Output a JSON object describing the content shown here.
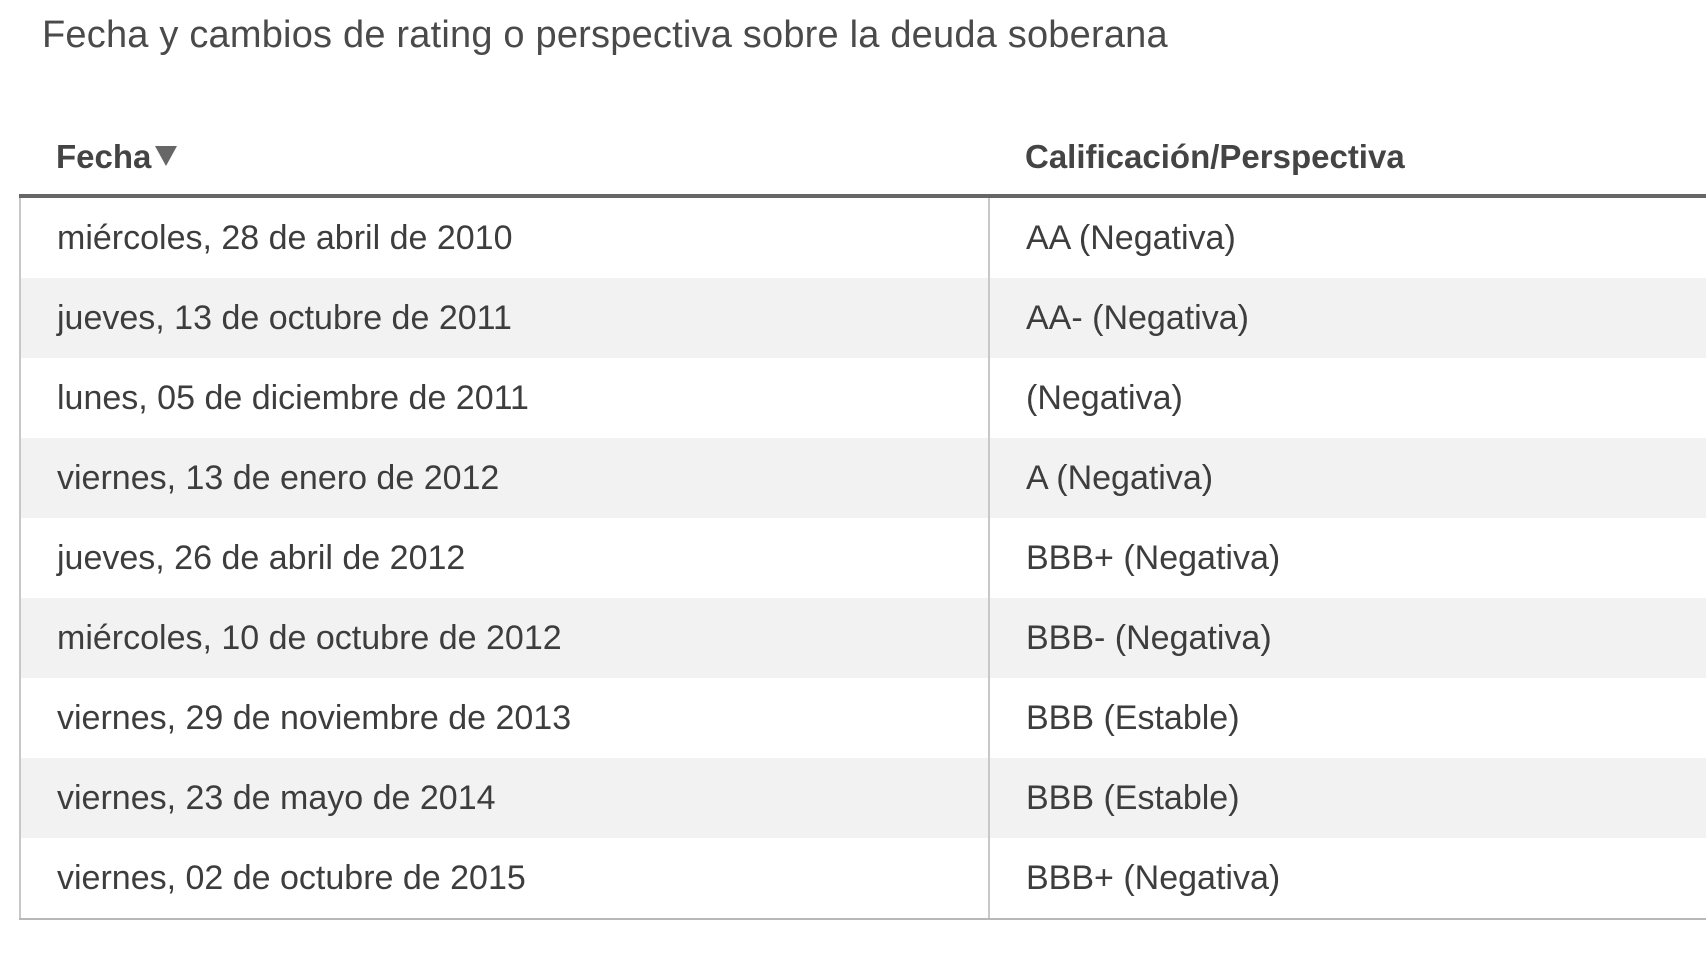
{
  "title": "Fecha y cambios de rating o perspectiva sobre la deuda soberana",
  "table": {
    "headers": {
      "date": "Fecha",
      "rating": "Calificación/Perspectiva"
    },
    "sort_icon": "sort-descending-triangle",
    "rows": [
      {
        "date": "miércoles, 28 de abril de 2010",
        "rating": "AA (Negativa)"
      },
      {
        "date": "jueves, 13 de octubre de 2011",
        "rating": "AA- (Negativa)"
      },
      {
        "date": "lunes, 05 de diciembre de 2011",
        "rating": "(Negativa)"
      },
      {
        "date": "viernes, 13 de enero de 2012",
        "rating": "A (Negativa)"
      },
      {
        "date": "jueves, 26 de abril de 2012",
        "rating": "BBB+ (Negativa)"
      },
      {
        "date": "miércoles, 10 de octubre de 2012",
        "rating": "BBB- (Negativa)"
      },
      {
        "date": "viernes, 29 de noviembre de 2013",
        "rating": "BBB (Estable)"
      },
      {
        "date": "viernes, 23 de mayo de 2014",
        "rating": "BBB (Estable)"
      },
      {
        "date": "viernes, 02 de octubre de 2015",
        "rating": "BBB+ (Negativa)"
      }
    ]
  }
}
